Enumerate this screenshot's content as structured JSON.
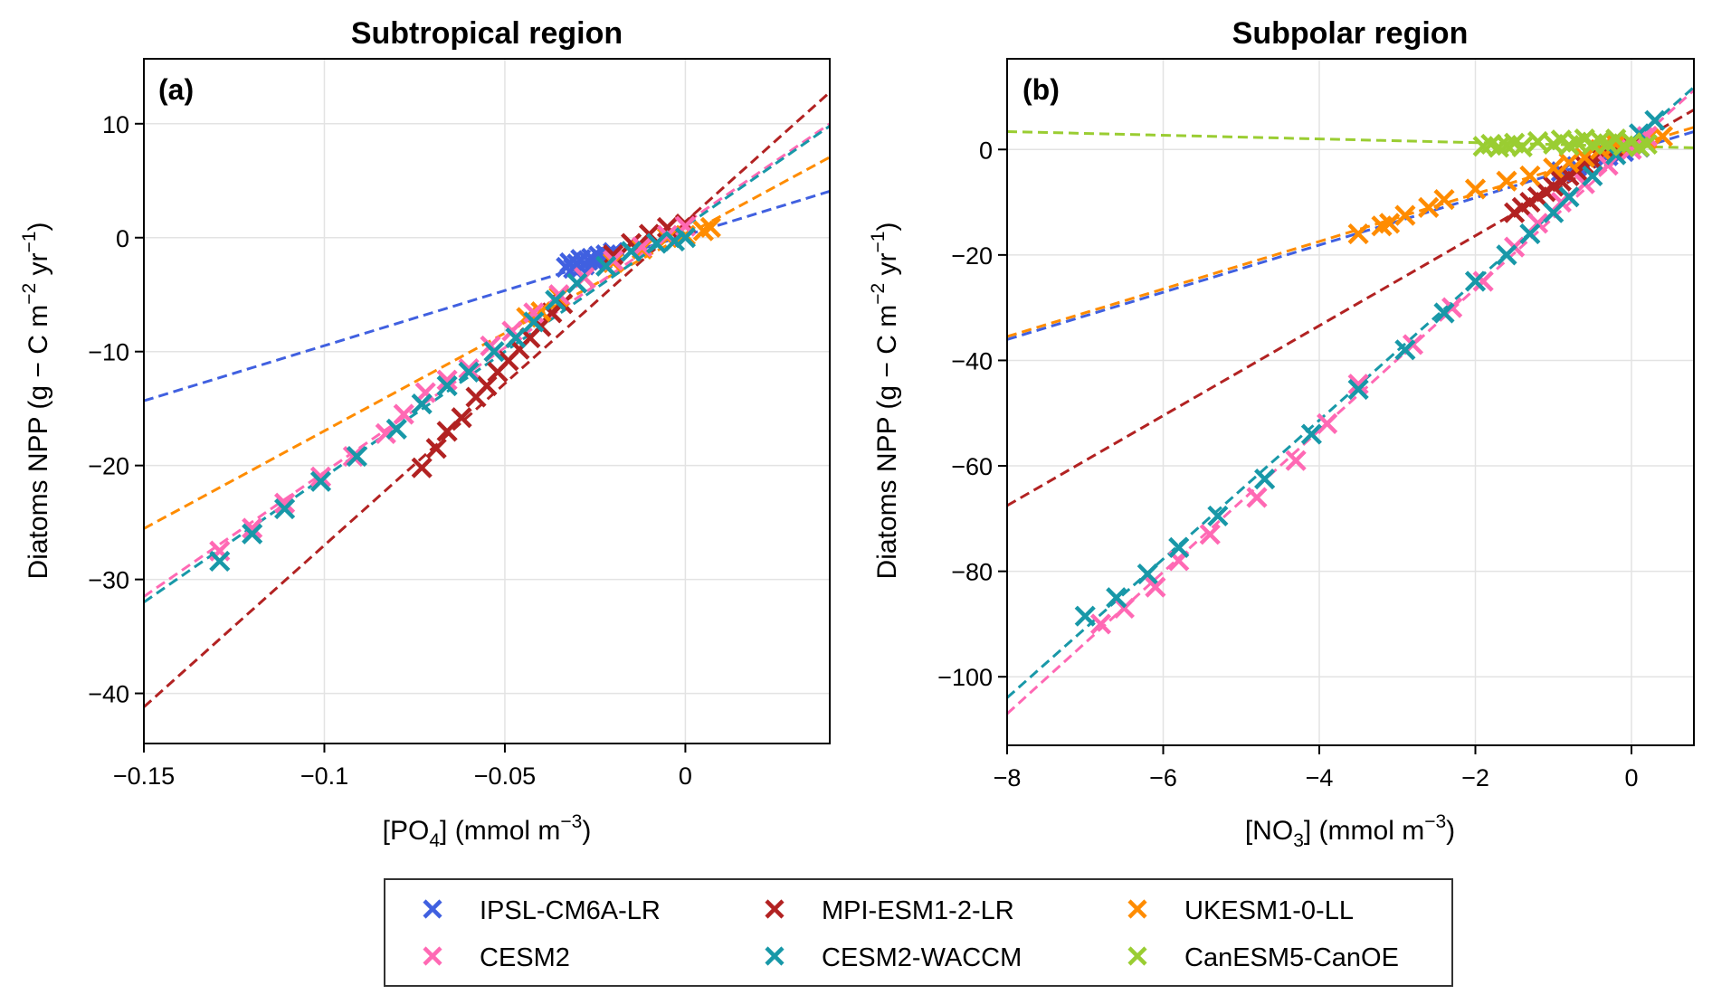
{
  "chart_data": [
    {
      "type": "scatter",
      "panel_label": "(a)",
      "title": "Subtropical region",
      "xlabel": "[PO4] (mmol m-3)",
      "xlabel_parts": {
        "pre": "[PO",
        "sub": "4",
        "mid": "] (mmol m",
        "sup": "−3",
        "post": ")"
      },
      "ylabel": "Diatoms NPP (g − C m−2 yr−1)",
      "xlim": [
        -0.15,
        0.04
      ],
      "ylim": [
        -44.4,
        15.7
      ],
      "xticks": [
        -0.15,
        -0.1,
        -0.05,
        0
      ],
      "xtick_labels": [
        "−0.15",
        "−0.1",
        "−0.05",
        "0"
      ],
      "yticks": [
        10,
        0,
        -10,
        -20,
        -30,
        -40
      ],
      "ytick_labels": [
        "10",
        "0",
        "−10",
        "−20",
        "−30",
        "−40"
      ],
      "grid": true,
      "series": [
        {
          "name": "IPSL-CM6A-LR",
          "fit": {
            "slope": 96.8,
            "intercept": 0.2
          },
          "points": [
            [
              -0.033,
              -2.6
            ],
            [
              -0.032,
              -2.2
            ],
            [
              -0.031,
              -2.7
            ],
            [
              -0.03,
              -2.3
            ],
            [
              -0.029,
              -1.9
            ],
            [
              -0.028,
              -2.4
            ],
            [
              -0.027,
              -2.0
            ],
            [
              -0.026,
              -1.8
            ],
            [
              -0.025,
              -2.1
            ],
            [
              -0.024,
              -1.6
            ],
            [
              -0.023,
              -1.9
            ],
            [
              -0.022,
              -1.5
            ],
            [
              -0.021,
              -1.7
            ],
            [
              -0.02,
              -1.3
            ]
          ]
        },
        {
          "name": "MPI-ESM1-2-LR",
          "fit": {
            "slope": 284.0,
            "intercept": 1.4
          },
          "points": [
            [
              -0.073,
              -20.2
            ],
            [
              -0.069,
              -18.5
            ],
            [
              -0.066,
              -17.0
            ],
            [
              -0.062,
              -15.8
            ],
            [
              -0.058,
              -14.0
            ],
            [
              -0.055,
              -13.0
            ],
            [
              -0.052,
              -11.8
            ],
            [
              -0.049,
              -10.8
            ],
            [
              -0.046,
              -9.8
            ],
            [
              -0.043,
              -8.8
            ],
            [
              -0.04,
              -7.8
            ],
            [
              -0.037,
              -6.6
            ],
            [
              -0.034,
              -5.8
            ],
            [
              -0.02,
              -1.5
            ],
            [
              -0.015,
              -0.5
            ],
            [
              -0.01,
              0.3
            ],
            [
              -0.005,
              0.9
            ],
            [
              0.0,
              1.2
            ]
          ]
        },
        {
          "name": "UKESM1-0-LL",
          "fit": {
            "slope": 171.6,
            "intercept": 0.2
          },
          "points": [
            [
              -0.044,
              -7.0
            ],
            [
              -0.04,
              -6.5
            ],
            [
              -0.035,
              -5.2
            ],
            [
              -0.028,
              -3.5
            ],
            [
              -0.02,
              -2.2
            ],
            [
              -0.012,
              -1.0
            ],
            [
              -0.005,
              0.0
            ],
            [
              0.0,
              0.2
            ],
            [
              0.005,
              0.6
            ],
            [
              0.007,
              0.9
            ]
          ]
        },
        {
          "name": "CESM2",
          "fit": {
            "slope": 218.4,
            "intercept": 1.26
          },
          "points": [
            [
              -0.129,
              -27.5
            ],
            [
              -0.12,
              -25.5
            ],
            [
              -0.111,
              -23.3
            ],
            [
              -0.101,
              -21.0
            ],
            [
              -0.092,
              -19.2
            ],
            [
              -0.083,
              -17.2
            ],
            [
              -0.078,
              -15.5
            ],
            [
              -0.072,
              -13.6
            ],
            [
              -0.066,
              -12.5
            ],
            [
              -0.06,
              -11.5
            ],
            [
              -0.054,
              -9.5
            ],
            [
              -0.048,
              -8.2
            ],
            [
              -0.042,
              -6.6
            ],
            [
              -0.035,
              -5.0
            ],
            [
              -0.028,
              -3.5
            ],
            [
              -0.02,
              -2.0
            ],
            [
              -0.012,
              -0.8
            ],
            [
              -0.005,
              0.2
            ],
            [
              0.0,
              1.0
            ]
          ]
        },
        {
          "name": "CESM2-WACCM",
          "fit": {
            "slope": 220.0,
            "intercept": 1.0
          },
          "points": [
            [
              -0.129,
              -28.4
            ],
            [
              -0.12,
              -26.0
            ],
            [
              -0.111,
              -23.8
            ],
            [
              -0.101,
              -21.4
            ],
            [
              -0.091,
              -19.2
            ],
            [
              -0.08,
              -16.8
            ],
            [
              -0.073,
              -14.6
            ],
            [
              -0.066,
              -13.0
            ],
            [
              -0.06,
              -11.8
            ],
            [
              -0.053,
              -10.0
            ],
            [
              -0.047,
              -8.8
            ],
            [
              -0.042,
              -7.4
            ],
            [
              -0.036,
              -5.5
            ],
            [
              -0.03,
              -4.0
            ],
            [
              -0.022,
              -2.5
            ],
            [
              -0.015,
              -1.2
            ],
            [
              -0.008,
              -0.5
            ],
            [
              -0.003,
              -0.3
            ],
            [
              0.0,
              0.0
            ]
          ]
        }
      ]
    },
    {
      "type": "scatter",
      "panel_label": "(b)",
      "title": "Subpolar region",
      "xlabel": "[NO3] (mmol m-3)",
      "xlabel_parts": {
        "pre": "[NO",
        "sub": "3",
        "mid": "] (mmol m",
        "sup": "−3",
        "post": ")"
      },
      "ylabel": "Diatoms NPP (g − C m−2 yr−1)",
      "xlim": [
        -8,
        0.8
      ],
      "ylim": [
        -113,
        17.2
      ],
      "xticks": [
        -8,
        -6,
        -4,
        -2,
        0
      ],
      "xtick_labels": [
        "−8",
        "−6",
        "−4",
        "−2",
        "0"
      ],
      "yticks": [
        0,
        -20,
        -40,
        -60,
        -80,
        -100
      ],
      "ytick_labels": [
        "0",
        "−20",
        "−40",
        "−60",
        "−80",
        "−100"
      ],
      "grid": true,
      "series": [
        {
          "name": "IPSL-CM6A-LR",
          "fit": {
            "slope": 4.48,
            "intercept": -0.2
          },
          "points": [
            [
              -0.9,
              -4.2
            ],
            [
              -0.7,
              -3.2
            ],
            [
              -0.5,
              -2.2
            ],
            [
              -0.3,
              -1.2
            ],
            [
              -0.1,
              -0.4
            ],
            [
              0.1,
              0.4
            ]
          ]
        },
        {
          "name": "MPI-ESM1-2-LR",
          "fit": {
            "slope": 8.53,
            "intercept": 0.7
          },
          "points": [
            [
              -1.5,
              -12.0
            ],
            [
              -1.4,
              -11.0
            ],
            [
              -1.3,
              -10.0
            ],
            [
              -1.2,
              -9.0
            ],
            [
              -1.1,
              -8.0
            ],
            [
              -1.0,
              -7.0
            ],
            [
              -0.9,
              -6.0
            ],
            [
              -0.8,
              -5.0
            ],
            [
              -0.7,
              -4.0
            ],
            [
              -0.6,
              -3.0
            ],
            [
              -0.5,
              -2.0
            ],
            [
              -0.4,
              -1.5
            ],
            [
              -0.2,
              0.0
            ],
            [
              0.0,
              1.0
            ]
          ]
        },
        {
          "name": "UKESM1-0-LL",
          "fit": {
            "slope": 4.51,
            "intercept": 0.6
          },
          "points": [
            [
              -3.5,
              -16.0
            ],
            [
              -3.2,
              -14.5
            ],
            [
              -3.1,
              -14.0
            ],
            [
              -2.9,
              -12.5
            ],
            [
              -2.6,
              -11.0
            ],
            [
              -2.4,
              -9.5
            ],
            [
              -2.0,
              -7.5
            ],
            [
              -1.6,
              -6.0
            ],
            [
              -1.3,
              -5.0
            ],
            [
              -1.0,
              -3.5
            ],
            [
              -0.8,
              -2.5
            ],
            [
              -0.6,
              -1.5
            ],
            [
              -0.4,
              0.0
            ],
            [
              -0.2,
              1.0
            ],
            [
              0.2,
              2.0
            ],
            [
              0.4,
              2.5
            ]
          ]
        },
        {
          "name": "CESM2",
          "fit": {
            "slope": 13.44,
            "intercept": 0.5
          },
          "points": [
            [
              -6.8,
              -90.0
            ],
            [
              -6.5,
              -87.0
            ],
            [
              -6.1,
              -83.0
            ],
            [
              -5.8,
              -78.0
            ],
            [
              -5.4,
              -73.0
            ],
            [
              -4.8,
              -66.0
            ],
            [
              -4.3,
              -59.0
            ],
            [
              -3.9,
              -52.0
            ],
            [
              -3.5,
              -44.5
            ],
            [
              -2.8,
              -37.0
            ],
            [
              -2.3,
              -30.0
            ],
            [
              -1.9,
              -25.0
            ],
            [
              -1.5,
              -18.5
            ],
            [
              -1.2,
              -14.0
            ],
            [
              -0.9,
              -10.0
            ],
            [
              -0.6,
              -6.5
            ],
            [
              -0.3,
              -3.0
            ],
            [
              0.0,
              0.0
            ],
            [
              0.2,
              2.5
            ]
          ]
        },
        {
          "name": "CESM2-WACCM",
          "fit": {
            "slope": 13.16,
            "intercept": 1.3
          },
          "points": [
            [
              -7.0,
              -88.5
            ],
            [
              -6.6,
              -85.0
            ],
            [
              -6.2,
              -80.5
            ],
            [
              -5.8,
              -75.5
            ],
            [
              -5.3,
              -69.5
            ],
            [
              -4.7,
              -62.5
            ],
            [
              -4.1,
              -54.0
            ],
            [
              -3.5,
              -45.5
            ],
            [
              -2.9,
              -38.0
            ],
            [
              -2.4,
              -31.0
            ],
            [
              -2.0,
              -25.0
            ],
            [
              -1.6,
              -20.0
            ],
            [
              -1.3,
              -16.0
            ],
            [
              -1.0,
              -12.0
            ],
            [
              -0.8,
              -9.0
            ],
            [
              -0.5,
              -5.0
            ],
            [
              -0.2,
              -1.0
            ],
            [
              0.1,
              3.0
            ],
            [
              0.3,
              5.5
            ]
          ]
        },
        {
          "name": "CanESM5-CanOE",
          "fit": {
            "slope": -0.35,
            "intercept": 0.6
          },
          "points": [
            [
              -1.9,
              0.6
            ],
            [
              -1.8,
              1.0
            ],
            [
              -1.7,
              0.4
            ],
            [
              -1.6,
              0.8
            ],
            [
              -1.5,
              1.2
            ],
            [
              -1.4,
              0.5
            ],
            [
              -1.2,
              1.5
            ],
            [
              -1.0,
              1.0
            ],
            [
              -0.9,
              1.8
            ],
            [
              -0.8,
              0.8
            ],
            [
              -0.7,
              1.4
            ],
            [
              -0.6,
              2.0
            ],
            [
              -0.5,
              0.9
            ],
            [
              -0.4,
              1.6
            ],
            [
              -0.3,
              1.1
            ],
            [
              -0.2,
              2.0
            ],
            [
              -0.1,
              0.7
            ],
            [
              0.0,
              1.3
            ],
            [
              0.1,
              0.5
            ],
            [
              0.2,
              1.0
            ]
          ]
        }
      ]
    }
  ],
  "legend": {
    "placement": "bottom-center",
    "entries": [
      {
        "name": "IPSL-CM6A-LR",
        "color": "#4060e0"
      },
      {
        "name": "MPI-ESM1-2-LR",
        "color": "#b22222"
      },
      {
        "name": "UKESM1-0-LL",
        "color": "#ff8c00"
      },
      {
        "name": "CESM2",
        "color": "#ff69b4"
      },
      {
        "name": "CESM2-WACCM",
        "color": "#1898a8"
      },
      {
        "name": "CanESM5-CanOE",
        "color": "#9acd32"
      }
    ]
  },
  "ylabel_parts": {
    "pre": "Diatoms NPP (g − C m",
    "sup1": "−2",
    "mid": " yr",
    "sup2": "−1",
    "post": ")"
  }
}
